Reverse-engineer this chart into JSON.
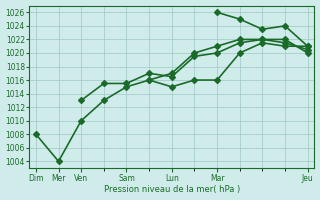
{
  "xlabel": "Pression niveau de la mer( hPa )",
  "bg_color": "#d0ecea",
  "grid_color": "#a0c8c4",
  "line_color": "#1a6b2a",
  "ylim": [
    1003,
    1027
  ],
  "yticks": [
    1004,
    1006,
    1008,
    1010,
    1012,
    1014,
    1016,
    1018,
    1020,
    1022,
    1024,
    1026
  ],
  "xtick_positions": [
    0,
    1,
    2,
    3,
    4,
    5,
    6,
    7,
    8,
    9,
    10,
    11,
    12
  ],
  "major_xtick_positions": [
    0,
    1,
    2,
    4,
    6,
    8,
    12
  ],
  "major_xtick_labels": [
    "Dim",
    "Mer",
    "Ven",
    "Sam",
    "Lun",
    "Mar",
    "Jeu"
  ],
  "line1": [
    1008,
    1004,
    1010,
    1013,
    1015,
    1016,
    1015,
    1016,
    1016,
    1020,
    1021.5,
    1021,
    1021
  ],
  "line2": [
    null,
    null,
    1013,
    1015.5,
    1015.5,
    1017,
    1016.5,
    1019.5,
    1020,
    1021.5,
    1022,
    1021.5,
    1020.5
  ],
  "line3": [
    null,
    null,
    null,
    null,
    null,
    1016,
    1017,
    1020,
    1021,
    1022,
    1022,
    1022,
    1020
  ],
  "line4": [
    null,
    null,
    null,
    null,
    null,
    null,
    null,
    null,
    1026,
    1025,
    1023.5,
    1024,
    1021
  ],
  "marker": "D",
  "markersize": 3,
  "linewidth": 1.2
}
